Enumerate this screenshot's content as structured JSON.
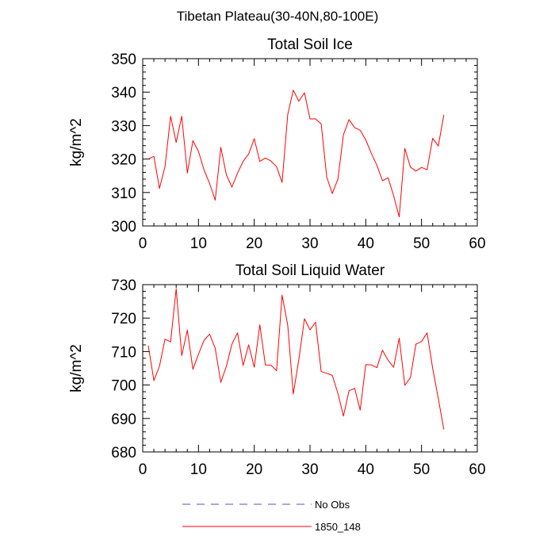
{
  "figure": {
    "title": "Tibetan Plateau(30-40N,80-100E)"
  },
  "legend": {
    "placement": "bottom",
    "entries": [
      {
        "name": "No Obs",
        "style": "dashed",
        "color": "#5555aa"
      },
      {
        "name": "1850_148",
        "style": "solid",
        "color": "#ff0000"
      }
    ]
  },
  "chart_data": [
    {
      "type": "line",
      "title": "Total Soil Ice",
      "xlabel": "",
      "ylabel": "kg/m^2",
      "xlim": [
        0,
        60
      ],
      "ylim": [
        300,
        350
      ],
      "xticks": [
        0,
        10,
        20,
        30,
        40,
        50,
        60
      ],
      "yticks": [
        300,
        310,
        320,
        330,
        340,
        350
      ],
      "grid": false,
      "series": [
        {
          "name": "1850_148",
          "color": "#ff0000",
          "x": [
            1,
            2,
            3,
            4,
            5,
            6,
            7,
            8,
            9,
            10,
            11,
            12,
            13,
            14,
            15,
            16,
            17,
            18,
            19,
            20,
            21,
            22,
            23,
            24,
            25,
            26,
            27,
            28,
            29,
            30,
            31,
            32,
            33,
            34,
            35,
            36,
            37,
            38,
            39,
            40,
            41,
            42,
            43,
            44,
            45,
            46,
            47,
            48,
            49,
            50,
            51,
            52,
            53,
            54
          ],
          "y": [
            320,
            320.8,
            311.2,
            317.7,
            332.8,
            325,
            332.8,
            315.8,
            325.5,
            322.3,
            316.7,
            312.7,
            307.7,
            323.5,
            315.3,
            311.6,
            315.8,
            319.3,
            321.5,
            326.1,
            319.3,
            320.3,
            319.4,
            317.7,
            313,
            333.3,
            340.6,
            337.3,
            339.8,
            332,
            332,
            330.5,
            314.6,
            309.7,
            314,
            327.3,
            331.8,
            329.4,
            328.6,
            325.7,
            321.7,
            318.1,
            313.5,
            314.4,
            309,
            302.7,
            323.2,
            317.6,
            316.4,
            317.5,
            316.8,
            326.2,
            323.9,
            333.2
          ]
        }
      ]
    },
    {
      "type": "line",
      "title": "Total Soil Liquid Water",
      "xlabel": "",
      "ylabel": "kg/m^2",
      "xlim": [
        0,
        60
      ],
      "ylim": [
        680,
        730
      ],
      "xticks": [
        0,
        10,
        20,
        30,
        40,
        50,
        60
      ],
      "yticks": [
        680,
        690,
        700,
        710,
        720,
        730
      ],
      "grid": false,
      "series": [
        {
          "name": "1850_148",
          "color": "#ff0000",
          "x": [
            1,
            2,
            3,
            4,
            5,
            6,
            7,
            8,
            9,
            10,
            11,
            12,
            13,
            14,
            15,
            16,
            17,
            18,
            19,
            20,
            21,
            22,
            23,
            24,
            25,
            26,
            27,
            28,
            29,
            30,
            31,
            32,
            33,
            34,
            35,
            36,
            37,
            38,
            39,
            40,
            41,
            42,
            43,
            44,
            45,
            46,
            47,
            48,
            49,
            50,
            51,
            52,
            53,
            54
          ],
          "y": [
            711.8,
            701.3,
            705.6,
            713.7,
            712.9,
            728.8,
            708.8,
            716.4,
            704.7,
            709.2,
            713.4,
            715.2,
            711,
            700.8,
            705.6,
            712.2,
            715.6,
            705.8,
            712,
            705.3,
            718,
            706,
            705.9,
            704.3,
            726.9,
            717.9,
            697.3,
            707.6,
            719.8,
            716.5,
            718.8,
            704,
            703.5,
            702.9,
            697.5,
            690.7,
            698.3,
            699,
            692.5,
            706.1,
            706,
            705.2,
            710.4,
            707.4,
            705.3,
            714,
            699.9,
            702.2,
            712.2,
            713,
            715.6,
            705,
            696,
            686.7
          ]
        }
      ]
    }
  ]
}
